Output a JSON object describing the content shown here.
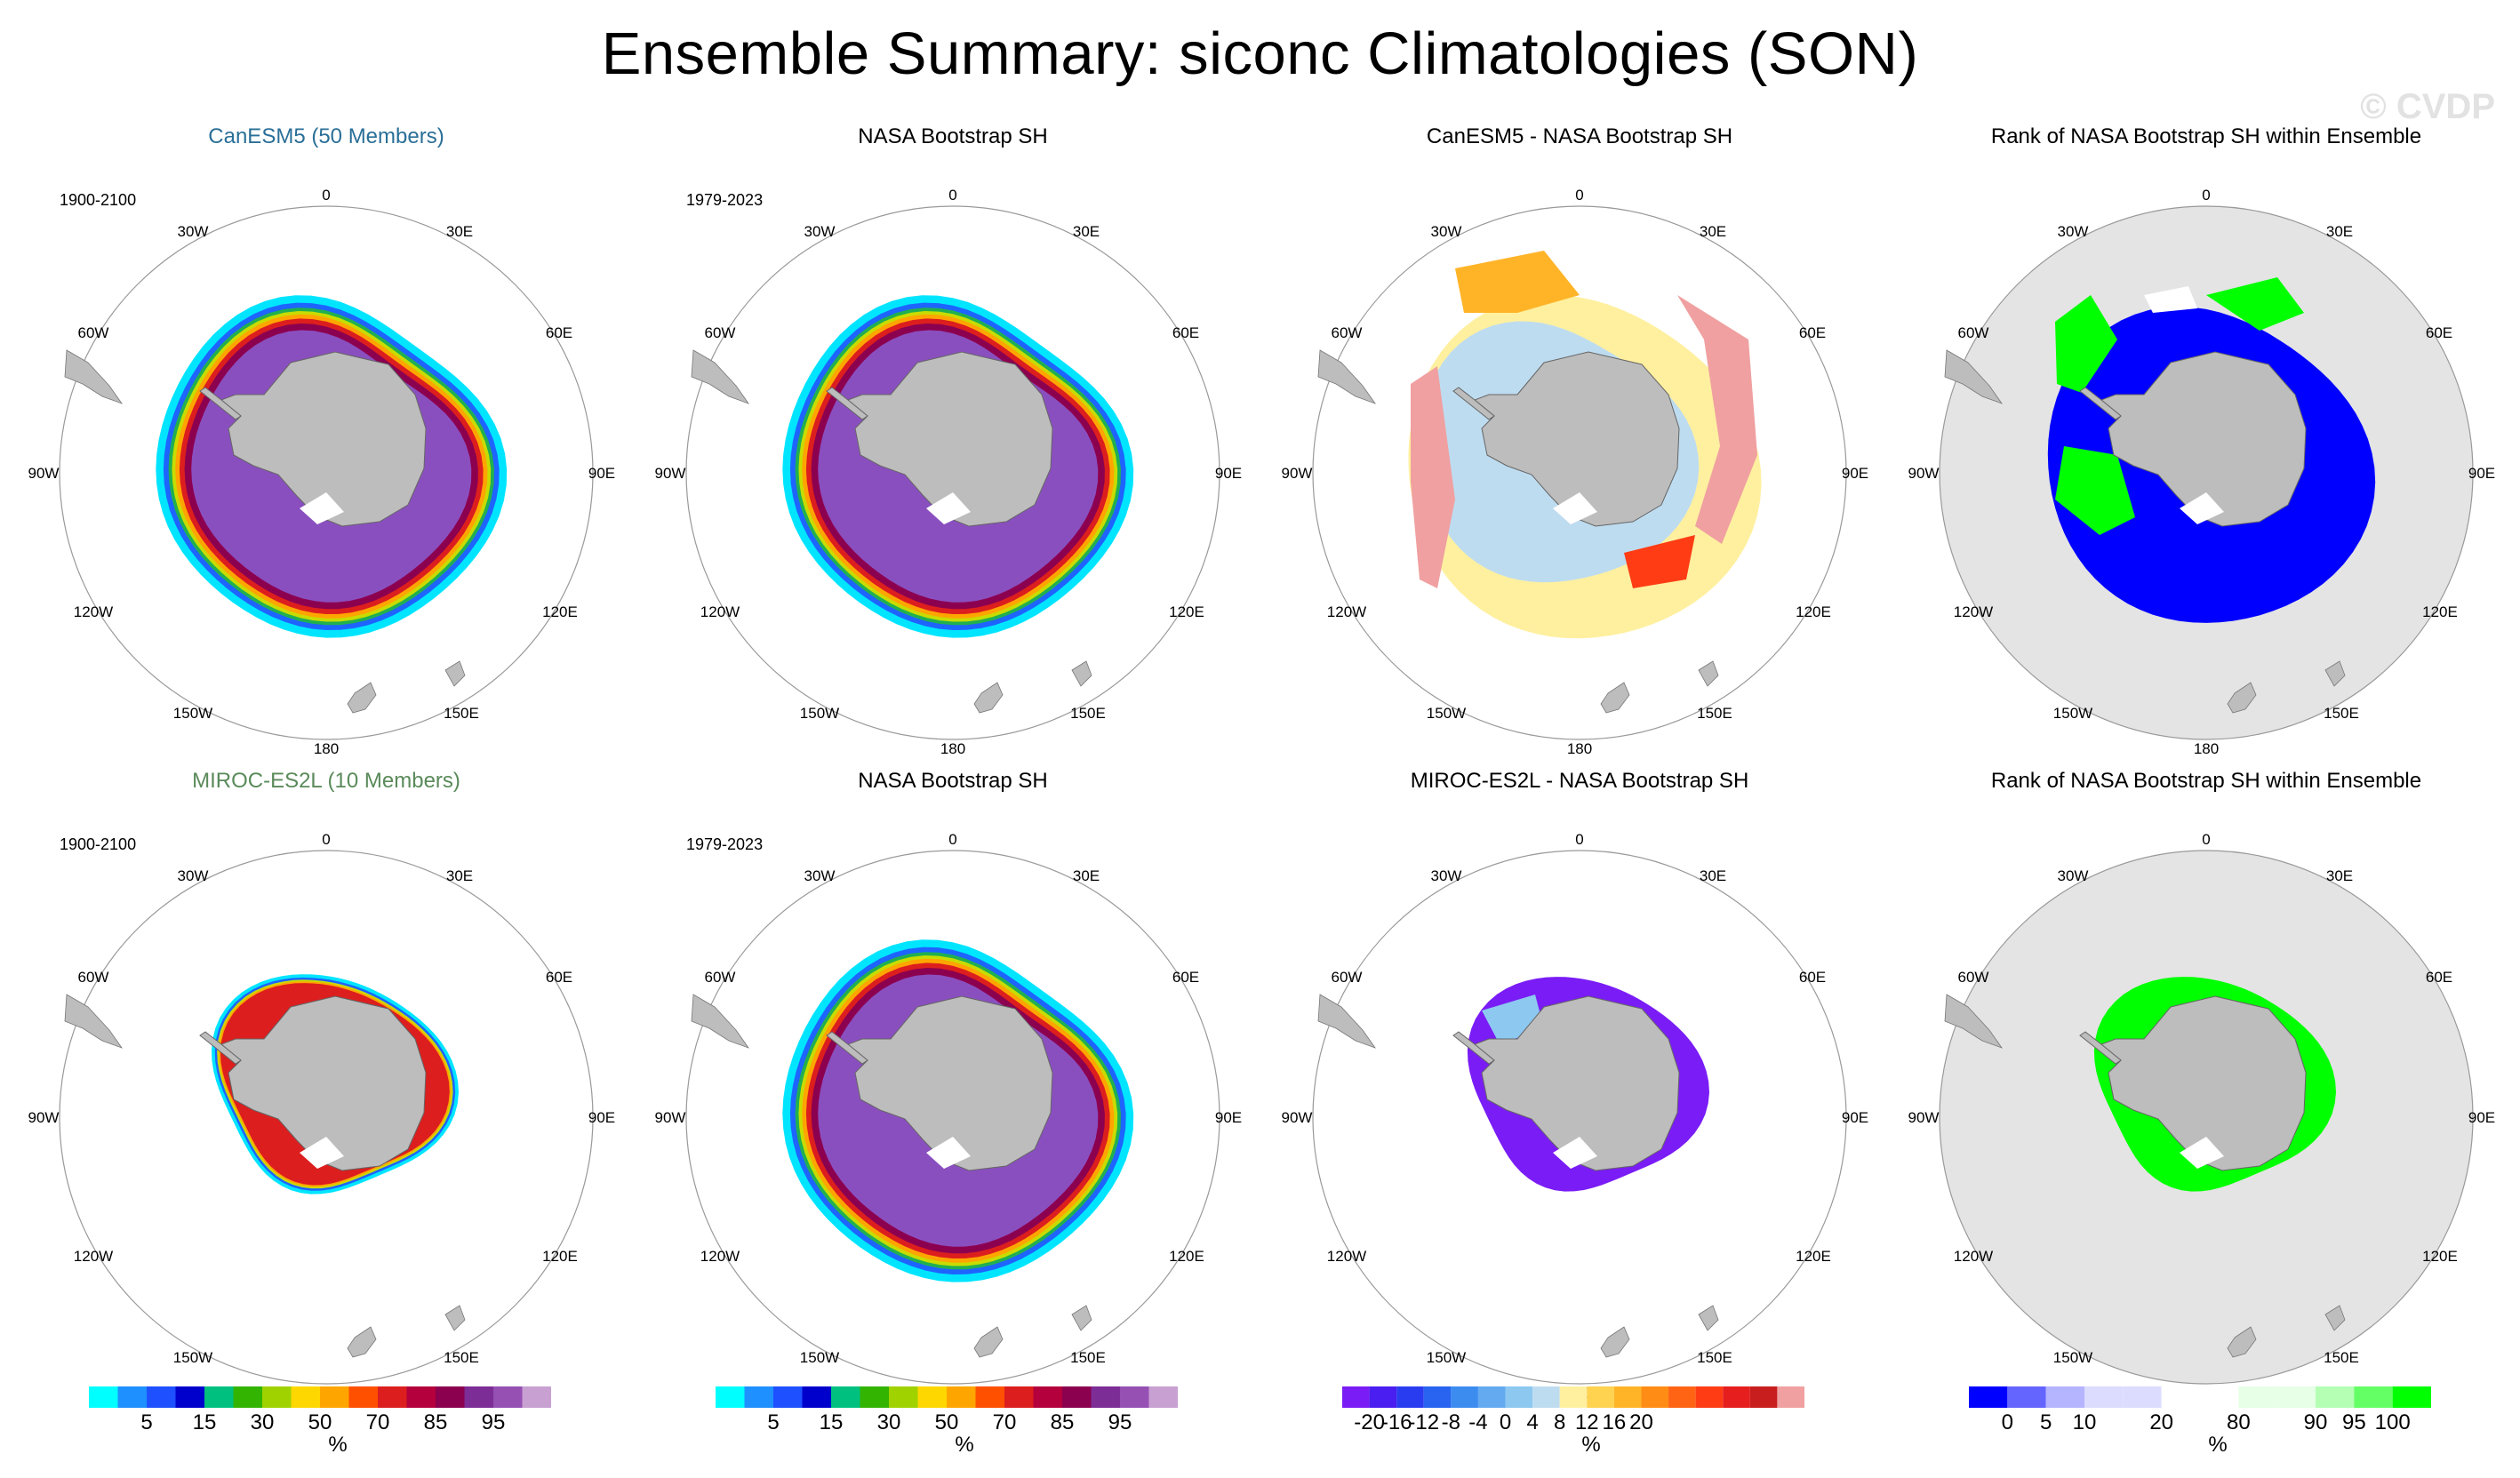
{
  "title": "Ensemble Summary: siconc Climatologies (SON)",
  "watermark": "© CVDP",
  "map_labels": {
    "n": "0",
    "nne": "30E",
    "ene": "60E",
    "e": "90E",
    "ese": "120E",
    "sse": "150E",
    "s": "180",
    "ssw": "150W",
    "wsw": "120W",
    "w": "90W",
    "wnw": "60W",
    "nnw": "30W"
  },
  "panels": [
    {
      "title": "CanESM5 (50 Members)",
      "title_color": "#2a6f97",
      "period": "1900-2100",
      "kind": "conc",
      "variant": "full"
    },
    {
      "title": "NASA Bootstrap SH",
      "title_color": "#000000",
      "period": "1979-2023",
      "kind": "conc",
      "variant": "full"
    },
    {
      "title": "CanESM5 - NASA Bootstrap SH",
      "title_color": "#000000",
      "period": "",
      "kind": "diff",
      "variant": "full"
    },
    {
      "title": "Rank of NASA Bootstrap SH within Ensemble",
      "title_color": "#000000",
      "period": "",
      "kind": "rank",
      "variant": "full"
    },
    {
      "title": "MIROC-ES2L (10 Members)",
      "title_color": "#5a8a5a",
      "period": "1900-2100",
      "kind": "conc",
      "variant": "small"
    },
    {
      "title": "NASA Bootstrap SH",
      "title_color": "#000000",
      "period": "1979-2023",
      "kind": "conc",
      "variant": "full"
    },
    {
      "title": "MIROC-ES2L - NASA Bootstrap SH",
      "title_color": "#000000",
      "period": "",
      "kind": "diff",
      "variant": "small"
    },
    {
      "title": "Rank of NASA Bootstrap SH within Ensemble",
      "title_color": "#000000",
      "period": "",
      "kind": "rank",
      "variant": "small"
    }
  ],
  "colorbars": [
    {
      "units": "%",
      "colors": [
        "#00ffff",
        "#1e90ff",
        "#1e50ff",
        "#0000cd",
        "#00c080",
        "#32b400",
        "#a0d200",
        "#ffd700",
        "#ffa500",
        "#ff5000",
        "#dc1e1e",
        "#b4003c",
        "#8c0050",
        "#7d2d96",
        "#9650b4",
        "#c8a0d2"
      ],
      "labels": [
        {
          "after": 1,
          "text": "5"
        },
        {
          "after": 3,
          "text": "15"
        },
        {
          "after": 5,
          "text": "30"
        },
        {
          "after": 7,
          "text": "50"
        },
        {
          "after": 9,
          "text": "70"
        },
        {
          "after": 11,
          "text": "85"
        },
        {
          "after": 13,
          "text": "95"
        }
      ]
    },
    {
      "units": "%",
      "colors": [
        "#00ffff",
        "#1e90ff",
        "#1e50ff",
        "#0000cd",
        "#00c080",
        "#32b400",
        "#a0d200",
        "#ffd700",
        "#ffa500",
        "#ff5000",
        "#dc1e1e",
        "#b4003c",
        "#8c0050",
        "#7d2d96",
        "#9650b4",
        "#c8a0d2"
      ],
      "labels": [
        {
          "after": 1,
          "text": "5"
        },
        {
          "after": 3,
          "text": "15"
        },
        {
          "after": 5,
          "text": "30"
        },
        {
          "after": 7,
          "text": "50"
        },
        {
          "after": 9,
          "text": "70"
        },
        {
          "after": 11,
          "text": "85"
        },
        {
          "after": 13,
          "text": "95"
        }
      ]
    },
    {
      "units": "%",
      "colors": [
        "#7a1cf5",
        "#4a1ef0",
        "#2a3cf0",
        "#2864f0",
        "#3c8cf0",
        "#64aaf0",
        "#8cc8f0",
        "#bedcf0",
        "#fff0a0",
        "#ffd250",
        "#ffb428",
        "#ff8c14",
        "#ff6414",
        "#ff3c14",
        "#e61e1e",
        "#c81e1e",
        "#f0a0a0"
      ],
      "labels": [
        {
          "after": 0,
          "text": "-20"
        },
        {
          "after": 1,
          "text": "-16"
        },
        {
          "after": 2,
          "text": "-12"
        },
        {
          "after": 3,
          "text": "-8"
        },
        {
          "after": 4,
          "text": "-4"
        },
        {
          "after": 5,
          "text": "0"
        },
        {
          "after": 6,
          "text": "4"
        },
        {
          "after": 7,
          "text": "8"
        },
        {
          "after": 8,
          "text": "12"
        },
        {
          "after": 9,
          "text": "16"
        },
        {
          "after": 10,
          "text": "20"
        }
      ]
    },
    {
      "units": "%",
      "colors": [
        "#0000ff",
        "#6464ff",
        "#b4b4ff",
        "#dcdcff",
        "#dcdcff",
        "#ffffff",
        "#ffffff",
        "#e6ffe6",
        "#e6ffe6",
        "#b4ffb4",
        "#64ff64",
        "#00ff00"
      ],
      "labels": [
        {
          "after": 0,
          "text": "0"
        },
        {
          "after": 1,
          "text": "5"
        },
        {
          "after": 2,
          "text": "10"
        },
        {
          "after": 4,
          "text": "20"
        },
        {
          "after": 6,
          "text": "80"
        },
        {
          "after": 8,
          "text": "90"
        },
        {
          "after": 9,
          "text": "95"
        },
        {
          "after": 10,
          "text": "100"
        }
      ]
    }
  ]
}
